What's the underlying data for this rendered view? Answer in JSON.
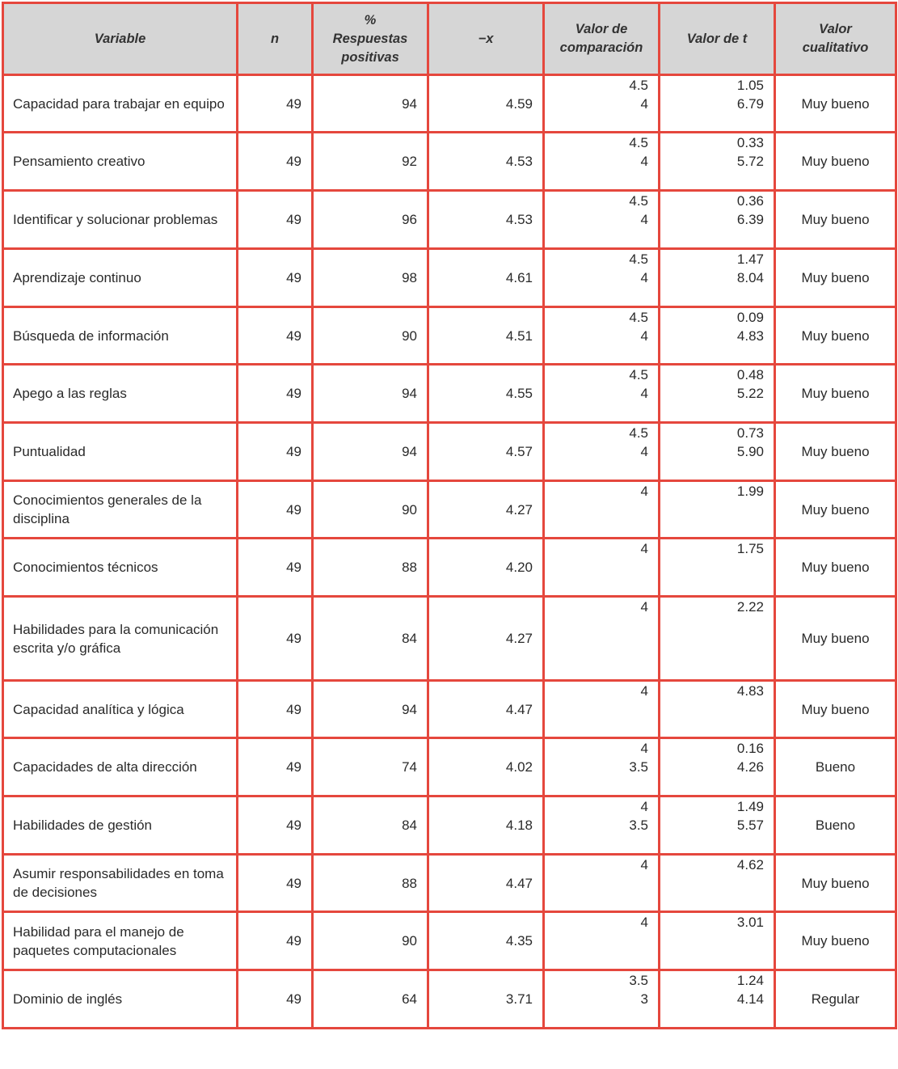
{
  "table": {
    "header": [
      "Variable",
      "n",
      "% Respuestas positivas",
      "−x",
      "Valor de comparación",
      "Valor de t",
      "Valor cualitativo"
    ],
    "rows": [
      {
        "variable": "Capacidad para trabajar en equipo",
        "n": "49",
        "percent": "94",
        "mean": "4.59",
        "comparison": [
          "4.5",
          "4"
        ],
        "t": [
          "1.05",
          "6.79"
        ],
        "qualitative": "Muy bueno"
      },
      {
        "variable": "Pensamiento creativo",
        "n": "49",
        "percent": "92",
        "mean": "4.53",
        "comparison": [
          "4.5",
          "4"
        ],
        "t": [
          "0.33",
          "5.72"
        ],
        "qualitative": "Muy bueno"
      },
      {
        "variable": "Identificar y solucionar problemas",
        "n": "49",
        "percent": "96",
        "mean": "4.53",
        "comparison": [
          "4.5",
          "4"
        ],
        "t": [
          "0.36",
          "6.39"
        ],
        "qualitative": "Muy bueno"
      },
      {
        "variable": "Aprendizaje continuo",
        "n": "49",
        "percent": "98",
        "mean": "4.61",
        "comparison": [
          "4.5",
          "4"
        ],
        "t": [
          "1.47",
          "8.04"
        ],
        "qualitative": "Muy bueno"
      },
      {
        "variable": "Búsqueda de información",
        "n": "49",
        "percent": "90",
        "mean": "4.51",
        "comparison": [
          "4.5",
          "4"
        ],
        "t": [
          "0.09",
          "4.83"
        ],
        "qualitative": "Muy bueno"
      },
      {
        "variable": "Apego a las reglas",
        "n": "49",
        "percent": "94",
        "mean": "4.55",
        "comparison": [
          "4.5",
          "4"
        ],
        "t": [
          "0.48",
          "5.22"
        ],
        "qualitative": "Muy bueno"
      },
      {
        "variable": "Puntualidad",
        "n": "49",
        "percent": "94",
        "mean": "4.57",
        "comparison": [
          "4.5",
          "4"
        ],
        "t": [
          "0.73",
          "5.90"
        ],
        "qualitative": "Muy bueno"
      },
      {
        "variable": "Conocimientos generales de la disciplina",
        "n": "49",
        "percent": "90",
        "mean": "4.27",
        "comparison": [
          "4"
        ],
        "t": [
          "1.99"
        ],
        "qualitative": "Muy bueno"
      },
      {
        "variable": "Conocimientos técnicos",
        "n": "49",
        "percent": "88",
        "mean": "4.20",
        "comparison": [
          "4"
        ],
        "t": [
          "1.75"
        ],
        "qualitative": "Muy bueno"
      },
      {
        "variable": "Habilidades para la comunicación escrita y/o gráfica",
        "n": "49",
        "percent": "84",
        "mean": "4.27",
        "comparison": [
          "4"
        ],
        "t": [
          "2.22"
        ],
        "qualitative": "Muy bueno"
      },
      {
        "variable": "Capacidad analítica y lógica",
        "n": "49",
        "percent": "94",
        "mean": "4.47",
        "comparison": [
          "4"
        ],
        "t": [
          "4.83"
        ],
        "qualitative": "Muy bueno"
      },
      {
        "variable": "Capacidades de alta dirección",
        "n": "49",
        "percent": "74",
        "mean": "4.02",
        "comparison": [
          "4",
          "3.5"
        ],
        "t": [
          "0.16",
          "4.26"
        ],
        "qualitative": "Bueno"
      },
      {
        "variable": "Habilidades de gestión",
        "n": "49",
        "percent": "84",
        "mean": "4.18",
        "comparison": [
          "4",
          "3.5"
        ],
        "t": [
          "1.49",
          "5.57"
        ],
        "qualitative": "Bueno"
      },
      {
        "variable": "Asumir responsabilidades en toma de decisiones",
        "n": "49",
        "percent": "88",
        "mean": "4.47",
        "comparison": [
          "4"
        ],
        "t": [
          "4.62"
        ],
        "qualitative": "Muy bueno"
      },
      {
        "variable": "Habilidad para el manejo de paquetes computacionales",
        "n": "49",
        "percent": "90",
        "mean": "4.35",
        "comparison": [
          "4"
        ],
        "t": [
          "3.01"
        ],
        "qualitative": "Muy bueno"
      },
      {
        "variable": "Dominio de inglés",
        "n": "49",
        "percent": "64",
        "mean": "3.71",
        "comparison": [
          "3.5",
          "3"
        ],
        "t": [
          "1.24",
          "4.14"
        ],
        "qualitative": "Regular"
      }
    ]
  }
}
